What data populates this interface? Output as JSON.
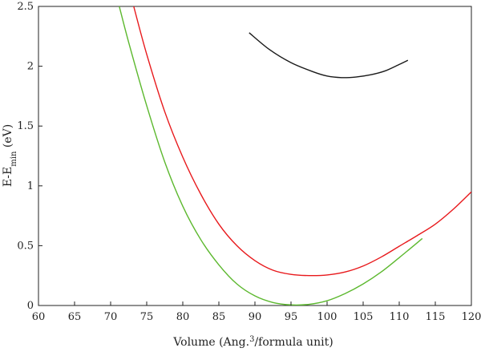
{
  "chart_data": {
    "type": "line",
    "xlabel_parts": {
      "pre": "Volume (Ang.",
      "sup": "3",
      "post": "/formula unit)"
    },
    "ylabel_parts": {
      "pre": "E-E",
      "sub": "min",
      "post": " (eV)"
    },
    "xlim": [
      60,
      120
    ],
    "ylim": [
      0,
      2.5
    ],
    "x_ticks": [
      60,
      65,
      70,
      75,
      80,
      85,
      90,
      95,
      100,
      105,
      110,
      115,
      120
    ],
    "y_ticks": [
      0,
      0.5,
      1,
      1.5,
      2,
      2.5
    ],
    "x_tick_labels": [
      "60",
      "65",
      "70",
      "75",
      "80",
      "85",
      "90",
      "95",
      "100",
      "105",
      "110",
      "115",
      "120"
    ],
    "y_tick_labels": [
      "0",
      "0.5",
      "1",
      "1.5",
      "2",
      "2.5"
    ],
    "grid": false,
    "series": [
      {
        "color": "#1a1a1a",
        "x": [
          89.2,
          92,
          95,
          98,
          100,
          102,
          104,
          106,
          108,
          110,
          111.2
        ],
        "y": [
          2.28,
          2.14,
          2.03,
          1.955,
          1.918,
          1.905,
          1.91,
          1.928,
          1.96,
          2.015,
          2.05
        ]
      },
      {
        "color": "#e8191c",
        "x": [
          73.2,
          75,
          77.5,
          80,
          82.5,
          85,
          87.5,
          90,
          92.5,
          95,
          97.5,
          100,
          102.5,
          105,
          107.5,
          110,
          112.5,
          115,
          117.5,
          120
        ],
        "y": [
          2.5,
          2.1,
          1.62,
          1.24,
          0.93,
          0.68,
          0.5,
          0.375,
          0.295,
          0.26,
          0.25,
          0.255,
          0.28,
          0.33,
          0.405,
          0.495,
          0.585,
          0.68,
          0.805,
          0.95
        ]
      },
      {
        "color": "#5cb82e",
        "x": [
          71.2,
          72.5,
          75,
          77.5,
          80,
          82.5,
          85,
          87.5,
          90,
          92.5,
          95,
          97.5,
          100,
          102.5,
          105,
          107.5,
          110,
          113.2
        ],
        "y": [
          2.5,
          2.2,
          1.67,
          1.2,
          0.83,
          0.55,
          0.34,
          0.18,
          0.08,
          0.025,
          0.005,
          0.01,
          0.04,
          0.1,
          0.18,
          0.28,
          0.4,
          0.56
        ]
      }
    ]
  }
}
